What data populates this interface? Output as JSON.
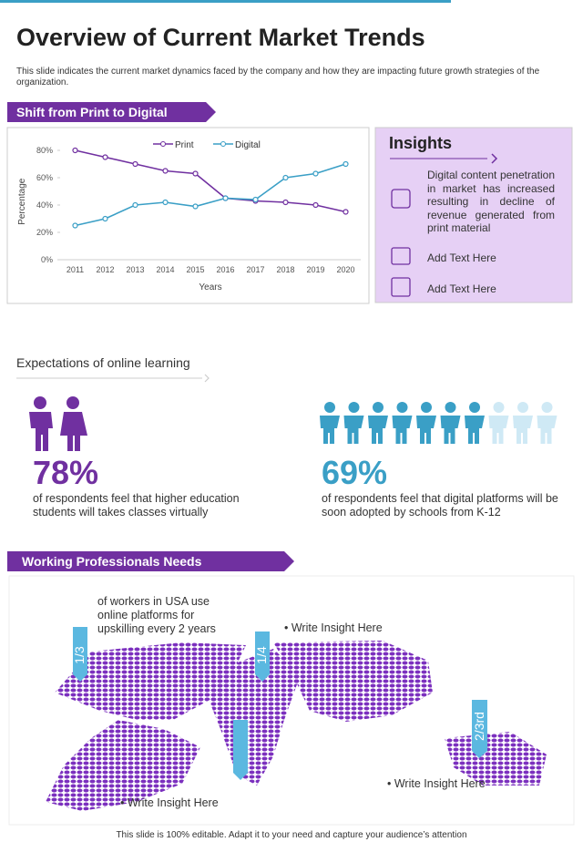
{
  "header": {
    "title": "Overview of Current Market Trends",
    "subtitle": "This slide indicates the current market dynamics faced by the company and how they are impacting future growth strategies of the organization."
  },
  "section1": {
    "banner": "Shift from Print to Digital"
  },
  "chart_data": {
    "type": "line",
    "categories": [
      "2011",
      "2012",
      "2013",
      "2014",
      "2015",
      "2016",
      "2017",
      "2018",
      "2019",
      "2020"
    ],
    "series": [
      {
        "name": "Print",
        "color": "#7030a0",
        "values": [
          80,
          75,
          70,
          65,
          63,
          45,
          43,
          42,
          40,
          35
        ]
      },
      {
        "name": "Digital",
        "color": "#3a9fc6",
        "values": [
          25,
          30,
          40,
          42,
          39,
          45,
          44,
          60,
          63,
          70
        ]
      }
    ],
    "ylim": [
      0,
      85
    ],
    "yticks": [
      {
        "value": 0,
        "label": "0%"
      },
      {
        "value": 20,
        "label": "20%"
      },
      {
        "value": 40,
        "label": "40%"
      },
      {
        "value": 60,
        "label": "60%"
      },
      {
        "value": 80,
        "label": "80%"
      }
    ],
    "ylabel": "Percentage",
    "xlabel": "Years",
    "legend": "top"
  },
  "insights": {
    "title": "Insights",
    "items": [
      "Digital content penetration in market has increased resulting in decline of revenue generated from print material",
      "Add Text Here",
      "Add Text Here"
    ]
  },
  "expectations": {
    "title": "Expectations of online learning",
    "stats": [
      {
        "value": "78%",
        "text": "of respondents feel that higher education students will takes classes virtually"
      },
      {
        "value": "69%",
        "text": "of respondents feel that digital platforms will be soon adopted by schools from K-12"
      }
    ]
  },
  "professionals": {
    "banner": "Working Professionals Needs",
    "markers": [
      "1/3",
      "1/4",
      "2/3rd"
    ],
    "notes": [
      "of workers in USA use online platforms for upskilling every 2 years",
      "Write Insight Here",
      "Write Insight Here",
      "Write Insight Here"
    ]
  },
  "footer": "This slide is 100% editable. Adapt it to your need and capture your audience’s attention"
}
